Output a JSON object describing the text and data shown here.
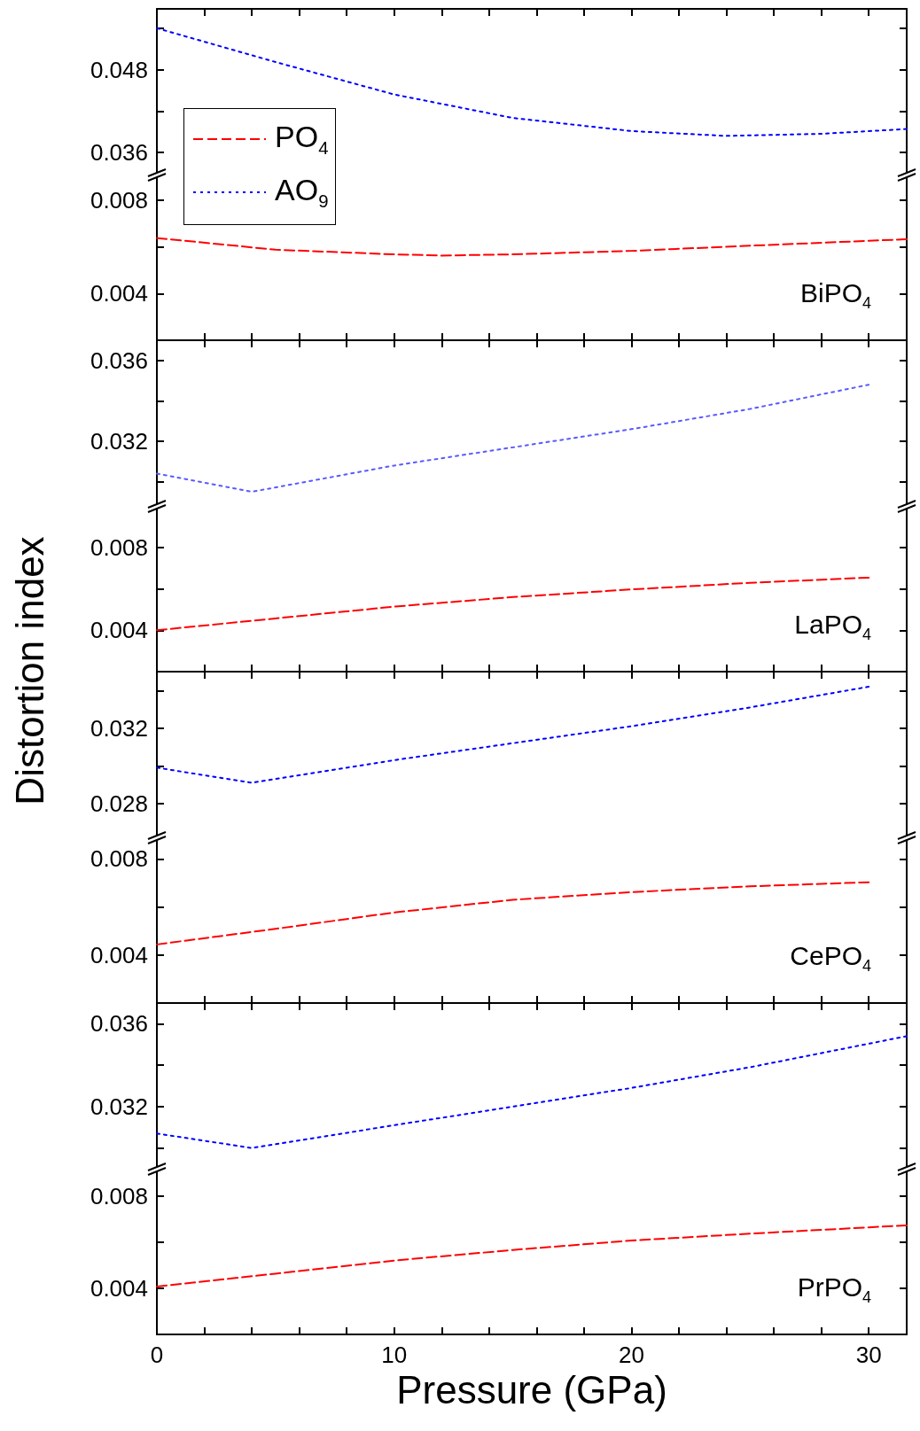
{
  "chart_data": [
    {
      "type": "line",
      "line_style": "dotted",
      "legend": "left",
      "tick_labels": "y",
      "xlim": [
        0,
        31.6
      ],
      "xticks": [
        0,
        {
          "value": 2,
          "label": null
        },
        {
          "value": 4,
          "label": null
        },
        {
          "value": 6,
          "label": null
        },
        {
          "value": 8,
          "label": null
        },
        10,
        {
          "value": 12,
          "label": null
        },
        {
          "value": 14,
          "label": null
        },
        {
          "value": 16,
          "label": null
        },
        {
          "value": 18,
          "label": null
        },
        20,
        {
          "value": 22,
          "label": null
        },
        {
          "value": 24,
          "label": null
        },
        {
          "value": 26,
          "label": null
        },
        {
          "value": 28,
          "label": null
        },
        30
      ],
      "ylim": [
        0.0328,
        0.0568
      ],
      "yticks": [
        0.036,
        {
          "value": 0.042,
          "label": null
        },
        0.048,
        {
          "value": 0.054,
          "label": null
        }
      ],
      "x": [
        0,
        5,
        10,
        15,
        20,
        24,
        28,
        31.6
      ],
      "series": [
        {
          "name": "AO$_{9}$",
          "color": "#0000ff",
          "values": [
            0.054,
            0.0491,
            0.0444,
            0.041,
            0.0391,
            0.0384,
            0.0387,
            0.0394
          ]
        }
      ]
    },
    {
      "type": "line",
      "line_style": "dashed",
      "legend": "left",
      "tick_labels": "y",
      "annotations": [
        "BiPO$_{4}$"
      ],
      "xlim": [
        0,
        31.6
      ],
      "xticks": [
        0,
        {
          "value": 2,
          "label": null
        },
        {
          "value": 4,
          "label": null
        },
        {
          "value": 6,
          "label": null
        },
        {
          "value": 8,
          "label": null
        },
        10,
        {
          "value": 12,
          "label": null
        },
        {
          "value": 14,
          "label": null
        },
        {
          "value": 16,
          "label": null
        },
        {
          "value": 18,
          "label": null
        },
        20,
        {
          "value": 22,
          "label": null
        },
        {
          "value": 24,
          "label": null
        },
        {
          "value": 26,
          "label": null
        },
        {
          "value": 28,
          "label": null
        },
        30
      ],
      "ylim": [
        0.002,
        0.0091
      ],
      "yticks": [
        0.004,
        {
          "value": 0.006,
          "label": null
        },
        0.008
      ],
      "x": [
        0,
        5,
        10,
        12,
        15,
        20,
        25,
        31.6
      ],
      "series": [
        {
          "name": "PO$_{4}$",
          "color": "#ff0000",
          "values": [
            0.00638,
            0.00588,
            0.00568,
            0.00563,
            0.00568,
            0.00583,
            0.00605,
            0.00633
          ]
        }
      ]
    },
    {
      "type": "line",
      "line_style": "dotted",
      "tick_labels": "y",
      "xlim": [
        0,
        31.6
      ],
      "xticks": [
        0,
        {
          "value": 2,
          "label": null
        },
        {
          "value": 4,
          "label": null
        },
        {
          "value": 6,
          "label": null
        },
        {
          "value": 8,
          "label": null
        },
        10,
        {
          "value": 12,
          "label": null
        },
        {
          "value": 14,
          "label": null
        },
        {
          "value": 16,
          "label": null
        },
        {
          "value": 18,
          "label": null
        },
        20,
        {
          "value": 22,
          "label": null
        },
        {
          "value": 24,
          "label": null
        },
        {
          "value": 26,
          "label": null
        },
        {
          "value": 28,
          "label": null
        },
        30
      ],
      "ylim": [
        0.0288,
        0.037
      ],
      "yticks": [
        {
          "value": 0.03,
          "label": null
        },
        0.032,
        {
          "value": 0.034,
          "label": null
        },
        0.036
      ],
      "x": [
        0,
        4,
        10,
        15,
        20,
        25,
        30
      ],
      "series": [
        {
          "color": "#5a5aff",
          "values": [
            0.0304,
            0.0295,
            0.0308,
            0.0317,
            0.0326,
            0.0336,
            0.0348
          ]
        }
      ]
    },
    {
      "type": "line",
      "line_style": "dashed",
      "tick_labels": "y",
      "ylabel": "Distortion index",
      "annotations": [
        "LaPO$_{4}$"
      ],
      "xlim": [
        0,
        31.6
      ],
      "xticks": [
        0,
        {
          "value": 2,
          "label": null
        },
        {
          "value": 4,
          "label": null
        },
        {
          "value": 6,
          "label": null
        },
        {
          "value": 8,
          "label": null
        },
        10,
        {
          "value": 12,
          "label": null
        },
        {
          "value": 14,
          "label": null
        },
        {
          "value": 16,
          "label": null
        },
        {
          "value": 18,
          "label": null
        },
        20,
        {
          "value": 22,
          "label": null
        },
        {
          "value": 24,
          "label": null
        },
        {
          "value": 26,
          "label": null
        },
        {
          "value": 28,
          "label": null
        },
        30
      ],
      "ylim": [
        0.002,
        0.01
      ],
      "yticks": [
        0.004,
        {
          "value": 0.006,
          "label": null
        },
        0.008
      ],
      "x": [
        0,
        5,
        10,
        15,
        20,
        25,
        30
      ],
      "series": [
        {
          "color": "#ff0000",
          "values": [
            0.004,
            0.00457,
            0.00514,
            0.0056,
            0.00597,
            0.00629,
            0.00654
          ]
        }
      ]
    },
    {
      "type": "line",
      "line_style": "dotted",
      "tick_labels": "y",
      "xlim": [
        0,
        31.6
      ],
      "xticks": [
        0,
        {
          "value": 2,
          "label": null
        },
        {
          "value": 4,
          "label": null
        },
        {
          "value": 6,
          "label": null
        },
        {
          "value": 8,
          "label": null
        },
        10,
        {
          "value": 12,
          "label": null
        },
        {
          "value": 14,
          "label": null
        },
        {
          "value": 16,
          "label": null
        },
        {
          "value": 18,
          "label": null
        },
        20,
        {
          "value": 22,
          "label": null
        },
        {
          "value": 24,
          "label": null
        },
        {
          "value": 26,
          "label": null
        },
        {
          "value": 28,
          "label": null
        },
        30
      ],
      "ylim": [
        0.0262,
        0.035
      ],
      "yticks": [
        0.028,
        {
          "value": 0.03,
          "label": null
        },
        0.032,
        {
          "value": 0.034,
          "label": null
        }
      ],
      "x": [
        0,
        4,
        10,
        15,
        20,
        25,
        30
      ],
      "series": [
        {
          "color": "#0000ff",
          "values": [
            0.0299,
            0.0291,
            0.0303,
            0.0312,
            0.0321,
            0.0331,
            0.0342
          ]
        }
      ]
    },
    {
      "type": "line",
      "line_style": "dashed",
      "tick_labels": "y",
      "annotations": [
        "CePO$_{4}$"
      ],
      "xlim": [
        0,
        31.6
      ],
      "xticks": [
        0,
        {
          "value": 2,
          "label": null
        },
        {
          "value": 4,
          "label": null
        },
        {
          "value": 6,
          "label": null
        },
        {
          "value": 8,
          "label": null
        },
        10,
        {
          "value": 12,
          "label": null
        },
        {
          "value": 14,
          "label": null
        },
        {
          "value": 16,
          "label": null
        },
        {
          "value": 18,
          "label": null
        },
        20,
        {
          "value": 22,
          "label": null
        },
        {
          "value": 24,
          "label": null
        },
        {
          "value": 26,
          "label": null
        },
        {
          "value": 28,
          "label": null
        },
        30
      ],
      "ylim": [
        0.002,
        0.0089
      ],
      "yticks": [
        0.004,
        {
          "value": 0.006,
          "label": null
        },
        0.008
      ],
      "x": [
        0,
        5,
        10,
        15,
        20,
        25,
        30
      ],
      "series": [
        {
          "color": "#ff0000",
          "values": [
            0.00444,
            0.00509,
            0.00577,
            0.0063,
            0.00662,
            0.00686,
            0.00703
          ]
        }
      ]
    },
    {
      "type": "line",
      "line_style": "dotted",
      "tick_labels": "y",
      "xlim": [
        0,
        31.6
      ],
      "xticks": [
        0,
        {
          "value": 2,
          "label": null
        },
        {
          "value": 4,
          "label": null
        },
        {
          "value": 6,
          "label": null
        },
        {
          "value": 8,
          "label": null
        },
        10,
        {
          "value": 12,
          "label": null
        },
        {
          "value": 14,
          "label": null
        },
        {
          "value": 16,
          "label": null
        },
        {
          "value": 18,
          "label": null
        },
        20,
        {
          "value": 22,
          "label": null
        },
        {
          "value": 24,
          "label": null
        },
        {
          "value": 26,
          "label": null
        },
        {
          "value": 28,
          "label": null
        },
        30
      ],
      "ylim": [
        0.029,
        0.037
      ],
      "yticks": [
        {
          "value": 0.03,
          "label": null
        },
        0.032,
        {
          "value": 0.034,
          "label": null
        },
        0.036
      ],
      "x": [
        0,
        4,
        10,
        15,
        20,
        25,
        31.6
      ],
      "series": [
        {
          "color": "#0000ff",
          "values": [
            0.0307,
            0.03,
            0.0311,
            0.032,
            0.0329,
            0.0339,
            0.0354
          ]
        }
      ]
    },
    {
      "type": "line",
      "line_style": "dashed",
      "xlabel": "Pressure (GPa)",
      "annotations": [
        "PrPO$_{4}$"
      ],
      "xlim": [
        0,
        31.6
      ],
      "xticks": [
        0,
        {
          "value": 2,
          "label": null
        },
        {
          "value": 4,
          "label": null
        },
        {
          "value": 6,
          "label": null
        },
        {
          "value": 8,
          "label": null
        },
        10,
        {
          "value": 12,
          "label": null
        },
        {
          "value": 14,
          "label": null
        },
        {
          "value": 16,
          "label": null
        },
        {
          "value": 18,
          "label": null
        },
        20,
        {
          "value": 22,
          "label": null
        },
        {
          "value": 24,
          "label": null
        },
        {
          "value": 26,
          "label": null
        },
        {
          "value": 28,
          "label": null
        },
        30
      ],
      "ylim": [
        0.002,
        0.0092
      ],
      "yticks": [
        0.004,
        {
          "value": 0.006,
          "label": null
        },
        0.008
      ],
      "x": [
        0,
        5,
        10,
        15,
        20,
        25,
        31.6
      ],
      "series": [
        {
          "color": "#ff0000",
          "values": [
            0.00408,
            0.00464,
            0.00521,
            0.00567,
            0.00608,
            0.00638,
            0.00674
          ]
        }
      ]
    }
  ]
}
